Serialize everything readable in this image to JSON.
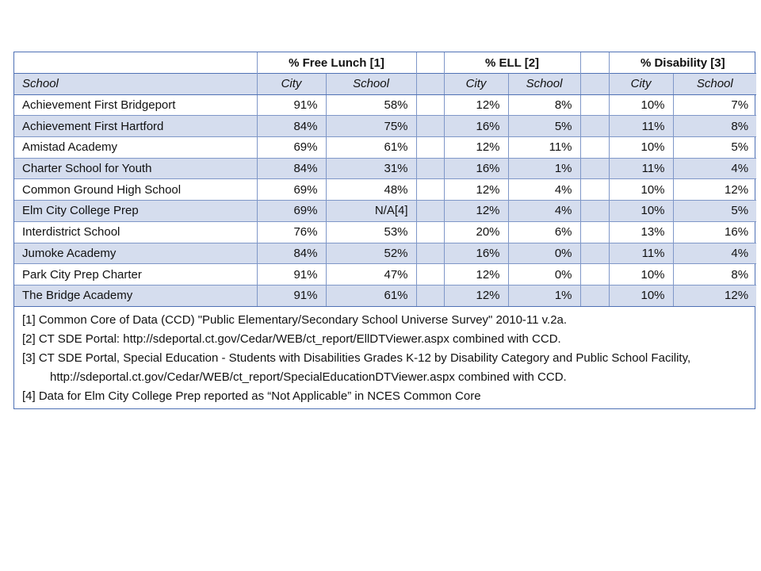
{
  "table": {
    "groups": [
      "% Free Lunch [1]",
      "% ELL [2]",
      "% Disability [3]"
    ],
    "subheaders": [
      "School",
      "City",
      "School",
      "City",
      "School",
      "City",
      "School"
    ],
    "rows": [
      [
        "Achievement First Bridgeport",
        "91%",
        "58%",
        "12%",
        "8%",
        "10%",
        "7%"
      ],
      [
        "Achievement First Hartford",
        "84%",
        "75%",
        "16%",
        "5%",
        "11%",
        "8%"
      ],
      [
        "Amistad Academy",
        "69%",
        "61%",
        "12%",
        "11%",
        "10%",
        "5%"
      ],
      [
        "Charter School for Youth",
        "84%",
        "31%",
        "16%",
        "1%",
        "11%",
        "4%"
      ],
      [
        "Common Ground High School",
        "69%",
        "48%",
        "12%",
        "4%",
        "10%",
        "12%"
      ],
      [
        "Elm City College Prep",
        "69%",
        "N/A[4]",
        "12%",
        "4%",
        "10%",
        "5%"
      ],
      [
        "Interdistrict School",
        "76%",
        "53%",
        "20%",
        "6%",
        "13%",
        "16%"
      ],
      [
        "Jumoke Academy",
        "84%",
        "52%",
        "16%",
        "0%",
        "11%",
        "4%"
      ],
      [
        "Park City Prep Charter",
        "91%",
        "47%",
        "12%",
        "0%",
        "10%",
        "8%"
      ],
      [
        "The Bridge Academy",
        "91%",
        "61%",
        "12%",
        "1%",
        "10%",
        "12%"
      ]
    ],
    "footnotes": [
      "[1] Common Core of Data (CCD)  \"Public Elementary/Secondary School Universe Survey\"   2010-11 v.2a.",
      "[2] CT SDE Portal: http://sdeportal.ct.gov/Cedar/WEB/ct_report/EllDTViewer.aspx combined with CCD.",
      "[3] CT SDE Portal, Special Education - Students with Disabilities Grades K-12 by Disability Category and Public School Facility, http://sdeportal.ct.gov/Cedar/WEB/ct_report/SpecialEducationDTViewer.aspx combined with CCD.",
      "[4] Data for Elm City College Prep reported as “Not Applicable” in NCES Common Core"
    ]
  }
}
